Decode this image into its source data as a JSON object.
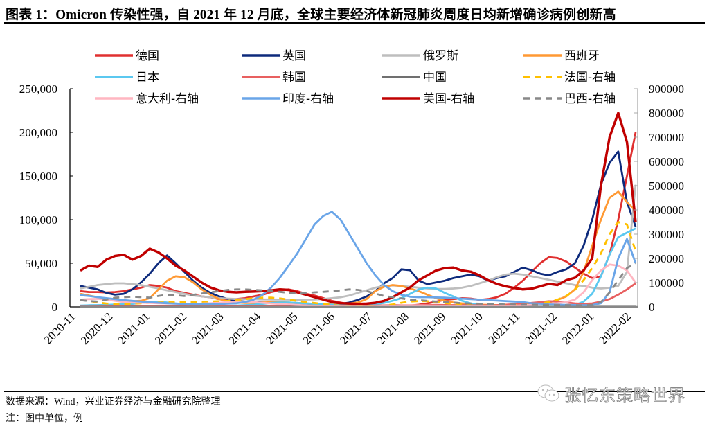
{
  "header": {
    "title": "图表 1：Omicron 传染性强，自 2021 年 12 月底，全球主要经济体新冠肺炎周度日均新增确诊病例创新高"
  },
  "footer": {
    "source": "数据来源：Wind，兴业证券经济与金融研究院整理",
    "note": "注：图中单位，例",
    "watermark": "张忆东策略世界"
  },
  "chart_data": {
    "type": "line",
    "title": "Omicron 传染性强，自 2021 年 12 月底，全球主要经济体新冠肺炎周度日均新增确诊病例创新高",
    "xlabel": "",
    "ylabel": "例",
    "y_left": {
      "min": 0,
      "max": 250000,
      "ticks": [
        "0",
        "50,000",
        "100,000",
        "150,000",
        "200,000",
        "250,000"
      ],
      "values": [
        0,
        50000,
        100000,
        150000,
        200000,
        250000
      ]
    },
    "y_right": {
      "min": 0,
      "max": 900000,
      "ticks": [
        "0",
        "100000",
        "200000",
        "300000",
        "400000",
        "500000",
        "600000",
        "700000",
        "800000",
        "900000"
      ],
      "values": [
        0,
        100000,
        200000,
        300000,
        400000,
        500000,
        600000,
        700000,
        800000,
        900000
      ]
    },
    "categories": [
      "2020-11",
      "2020-12",
      "2021-01",
      "2021-02",
      "2021-03",
      "2021-04",
      "2021-05",
      "2021-06",
      "2021-07",
      "2021-08",
      "2021-09",
      "2021-10",
      "2021-11",
      "2021-12",
      "2022-01",
      "2022-02"
    ],
    "grid": false,
    "legend_position": "top",
    "points_per_series": 65,
    "series": [
      {
        "name": "德国",
        "axis": "left",
        "color": "#e03030",
        "dash": false,
        "values": [
          18000,
          17000,
          17000,
          16500,
          17000,
          18000,
          20000,
          22000,
          25000,
          24000,
          22000,
          18000,
          16000,
          14000,
          12000,
          11000,
          9000,
          8000,
          9000,
          10000,
          12000,
          14000,
          17000,
          19000,
          20000,
          18000,
          15000,
          13000,
          10000,
          7000,
          5000,
          3000,
          2000,
          1000,
          800,
          700,
          800,
          1000,
          1500,
          2500,
          4000,
          6000,
          8000,
          9000,
          10000,
          9500,
          8000,
          9000,
          11000,
          15000,
          22000,
          30000,
          40000,
          50000,
          57000,
          56000,
          52000,
          45000,
          38000,
          33000,
          35000,
          60000,
          100000,
          150000,
          200000
        ]
      },
      {
        "name": "英国",
        "axis": "left",
        "color": "#0d2a7c",
        "dash": false,
        "values": [
          24000,
          22000,
          20000,
          16000,
          14000,
          15000,
          20000,
          28000,
          38000,
          50000,
          59000,
          50000,
          40000,
          30000,
          22000,
          16000,
          12000,
          9000,
          7000,
          6000,
          5500,
          5000,
          4500,
          3500,
          2800,
          2500,
          2400,
          2300,
          2400,
          2800,
          3500,
          5000,
          8000,
          12000,
          18000,
          27000,
          33000,
          43000,
          42000,
          30000,
          26000,
          28000,
          30000,
          33000,
          35000,
          37000,
          35000,
          30000,
          33000,
          35000,
          40000,
          45000,
          42000,
          38000,
          36000,
          40000,
          43000,
          50000,
          70000,
          100000,
          140000,
          165000,
          178000,
          120000,
          92000
        ]
      },
      {
        "name": "俄罗斯",
        "axis": "left",
        "color": "#bebebe",
        "dash": false,
        "values": [
          21000,
          23000,
          25000,
          26000,
          27000,
          27000,
          26000,
          25000,
          23000,
          21000,
          19000,
          17000,
          15000,
          13000,
          12000,
          11000,
          10000,
          9500,
          9000,
          8800,
          8700,
          8600,
          8500,
          8400,
          8300,
          8200,
          8300,
          8500,
          9000,
          10000,
          11000,
          13000,
          16000,
          19000,
          22000,
          24000,
          24500,
          24000,
          23000,
          22000,
          21000,
          20500,
          20500,
          21000,
          22000,
          24000,
          27000,
          30000,
          34000,
          37000,
          38000,
          37000,
          35000,
          33000,
          31000,
          29000,
          27000,
          25000,
          24000,
          22000,
          21000,
          22000,
          24000,
          40000,
          140000
        ]
      },
      {
        "name": "西班牙",
        "axis": "left",
        "color": "#ff9933",
        "dash": false,
        "values": [
          15000,
          13000,
          11000,
          9000,
          8000,
          7000,
          6500,
          7000,
          10000,
          20000,
          30000,
          35000,
          34000,
          28000,
          20000,
          14000,
          9000,
          6000,
          5000,
          4500,
          4500,
          5000,
          5500,
          5500,
          5000,
          4500,
          4000,
          3500,
          3000,
          3000,
          3500,
          4000,
          5000,
          9000,
          18000,
          23000,
          25000,
          24000,
          21000,
          18000,
          14000,
          10000,
          7000,
          5000,
          4000,
          3000,
          2500,
          2200,
          2000,
          2000,
          2100,
          2300,
          2800,
          3500,
          5000,
          8000,
          12000,
          20000,
          40000,
          70000,
          100000,
          125000,
          132000,
          120000,
          110000
        ]
      },
      {
        "name": "日本",
        "axis": "left",
        "color": "#5bc8f0",
        "dash": false,
        "values": [
          1500,
          1800,
          2000,
          2300,
          2600,
          3000,
          3500,
          4500,
          6000,
          6000,
          5000,
          4000,
          3000,
          2000,
          1500,
          1200,
          1100,
          1200,
          1500,
          2000,
          2500,
          3500,
          4500,
          5000,
          5000,
          4500,
          4000,
          3500,
          3000,
          2500,
          2000,
          1500,
          1500,
          2000,
          3000,
          4500,
          7000,
          10000,
          15000,
          20000,
          22000,
          21000,
          16000,
          12000,
          7000,
          4000,
          2000,
          1200,
          800,
          500,
          300,
          200,
          150,
          150,
          200,
          300,
          500,
          2000,
          6000,
          15000,
          35000,
          60000,
          80000,
          85000,
          90000
        ]
      },
      {
        "name": "韩国",
        "axis": "left",
        "color": "#e86060",
        "dash": false,
        "values": [
          200,
          300,
          400,
          500,
          600,
          800,
          1000,
          1100,
          1000,
          900,
          700,
          500,
          450,
          400,
          400,
          420,
          450,
          500,
          550,
          600,
          650,
          700,
          650,
          600,
          600,
          650,
          700,
          700,
          700,
          650,
          600,
          600,
          800,
          1000,
          1500,
          1700,
          1800,
          1800,
          1900,
          2000,
          2100,
          2200,
          2100,
          2000,
          2000,
          1800,
          1700,
          1800,
          2000,
          2500,
          3000,
          3500,
          4500,
          5500,
          6500,
          6000,
          5000,
          4000,
          3500,
          4000,
          6000,
          9000,
          14000,
          20000,
          27000
        ]
      },
      {
        "name": "中国",
        "axis": "left",
        "color": "#707070",
        "dash": false,
        "values": [
          20,
          25,
          20,
          20,
          25,
          30,
          40,
          60,
          80,
          100,
          90,
          70,
          50,
          40,
          30,
          25,
          20,
          15,
          15,
          15,
          15,
          15,
          20,
          20,
          20,
          15,
          15,
          15,
          15,
          15,
          15,
          20,
          20,
          25,
          30,
          40,
          50,
          60,
          60,
          50,
          40,
          30,
          20,
          20,
          25,
          30,
          30,
          25,
          30,
          40,
          50,
          60,
          70,
          80,
          90,
          100,
          120,
          150,
          170,
          160,
          150,
          140,
          130,
          130,
          140
        ]
      },
      {
        "name": "法国-右轴",
        "axis": "right",
        "color": "#ffc000",
        "dash": true,
        "values": [
          30000,
          25000,
          18000,
          14000,
          12000,
          12000,
          13000,
          15000,
          17000,
          18000,
          19000,
          20000,
          21000,
          21000,
          21000,
          22000,
          23000,
          25000,
          28000,
          32000,
          36000,
          38000,
          38000,
          35000,
          30000,
          25000,
          20000,
          16000,
          12000,
          8000,
          5000,
          3000,
          2500,
          2200,
          3000,
          5000,
          10000,
          17000,
          22000,
          24000,
          23000,
          20000,
          16000,
          12000,
          8000,
          6000,
          5000,
          5000,
          5500,
          6000,
          7000,
          8000,
          10000,
          14000,
          20000,
          30000,
          45000,
          70000,
          110000,
          160000,
          220000,
          300000,
          350000,
          340000,
          230000
        ]
      },
      {
        "name": "意大利-右轴",
        "axis": "right",
        "color": "#ffb6c1",
        "dash": false,
        "values": [
          30000,
          32000,
          33000,
          30000,
          25000,
          20000,
          18000,
          17000,
          16000,
          15000,
          14000,
          13000,
          12000,
          12500,
          13500,
          15000,
          17000,
          20000,
          22000,
          22000,
          20000,
          17000,
          14000,
          12000,
          10000,
          8000,
          6000,
          4500,
          3000,
          2000,
          1500,
          1000,
          800,
          700,
          1000,
          2000,
          4000,
          6000,
          6500,
          6000,
          5500,
          5000,
          4500,
          4000,
          3500,
          3000,
          3000,
          3200,
          3500,
          4000,
          5000,
          6000,
          8000,
          10000,
          12000,
          15000,
          20000,
          30000,
          60000,
          110000,
          150000,
          175000,
          170000,
          150000,
          100000
        ]
      },
      {
        "name": "印度-右轴",
        "axis": "right",
        "color": "#6aa5e8",
        "dash": false,
        "values": [
          48000,
          45000,
          40000,
          36000,
          32000,
          28000,
          25000,
          22000,
          19000,
          17000,
          15000,
          13000,
          12000,
          11500,
          11000,
          11000,
          11500,
          13000,
          15000,
          20000,
          30000,
          50000,
          80000,
          120000,
          170000,
          220000,
          280000,
          340000,
          375000,
          392000,
          360000,
          300000,
          240000,
          180000,
          130000,
          90000,
          65000,
          50000,
          42000,
          40000,
          40000,
          39000,
          38000,
          36000,
          34000,
          32000,
          30000,
          28000,
          26000,
          24000,
          22000,
          20000,
          15000,
          13000,
          10000,
          9000,
          8000,
          7500,
          7000,
          7500,
          15000,
          60000,
          200000,
          280000,
          180000
        ]
      },
      {
        "name": "美国-右轴",
        "axis": "right",
        "color": "#c00000",
        "dash": false,
        "values": [
          150000,
          170000,
          165000,
          195000,
          210000,
          215000,
          195000,
          210000,
          240000,
          225000,
          200000,
          170000,
          150000,
          125000,
          100000,
          80000,
          68000,
          62000,
          60000,
          62000,
          63000,
          65000,
          68000,
          72000,
          70000,
          60000,
          50000,
          40000,
          30000,
          20000,
          15000,
          14000,
          12000,
          13000,
          17000,
          25000,
          40000,
          60000,
          80000,
          110000,
          130000,
          150000,
          160000,
          162000,
          150000,
          145000,
          130000,
          110000,
          95000,
          85000,
          78000,
          72000,
          75000,
          85000,
          95000,
          90000,
          110000,
          120000,
          150000,
          200000,
          500000,
          700000,
          800000,
          680000,
          350000
        ]
      },
      {
        "name": "巴西-右轴",
        "axis": "right",
        "color": "#888888",
        "dash": true,
        "values": [
          28000,
          24000,
          22000,
          30000,
          38000,
          40000,
          42000,
          40000,
          38000,
          45000,
          50000,
          48000,
          45000,
          50000,
          55000,
          60000,
          65000,
          70000,
          72000,
          72000,
          70000,
          68000,
          65000,
          62000,
          58000,
          55000,
          57000,
          60000,
          62000,
          65000,
          68000,
          72000,
          70000,
          65000,
          55000,
          45000,
          40000,
          35000,
          30000,
          28000,
          25000,
          22000,
          20000,
          18000,
          15000,
          14000,
          13000,
          12000,
          11000,
          10000,
          9500,
          9000,
          8800,
          8500,
          8000,
          7800,
          7000,
          6500,
          6000,
          8000,
          20000,
          60000,
          110000,
          160000,
          180000
        ]
      }
    ],
    "legend": [
      {
        "label": "德国",
        "color": "#e03030",
        "dash": false
      },
      {
        "label": "英国",
        "color": "#0d2a7c",
        "dash": false
      },
      {
        "label": "俄罗斯",
        "color": "#bebebe",
        "dash": false
      },
      {
        "label": "西班牙",
        "color": "#ff9933",
        "dash": false
      },
      {
        "label": "日本",
        "color": "#5bc8f0",
        "dash": false
      },
      {
        "label": "韩国",
        "color": "#e86060",
        "dash": false
      },
      {
        "label": "中国",
        "color": "#707070",
        "dash": false
      },
      {
        "label": "法国-右轴",
        "color": "#ffc000",
        "dash": true
      },
      {
        "label": "意大利-右轴",
        "color": "#ffb6c1",
        "dash": false
      },
      {
        "label": "印度-右轴",
        "color": "#6aa5e8",
        "dash": false
      },
      {
        "label": "美国-右轴",
        "color": "#c00000",
        "dash": false
      },
      {
        "label": "巴西-右轴",
        "color": "#888888",
        "dash": true
      }
    ]
  }
}
